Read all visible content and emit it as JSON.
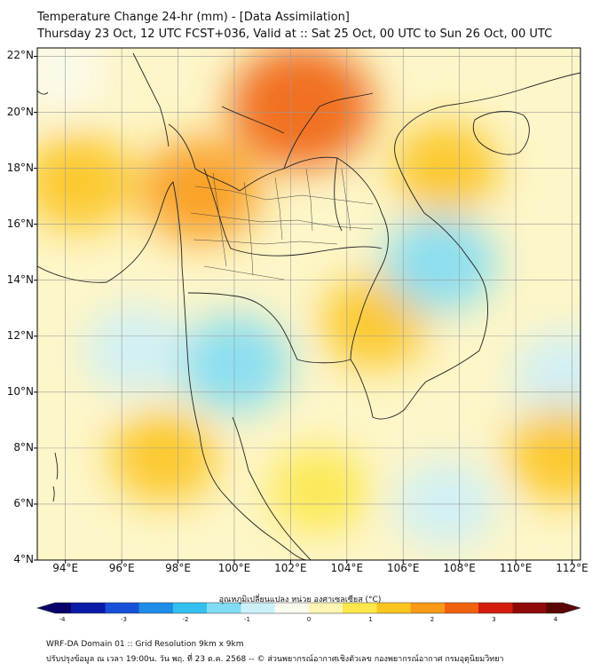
{
  "header": {
    "title_line1": "Temperature Change 24-hr (mm) - [Data Assimilation]",
    "title_line2": "Thursday 23 Oct, 12 UTC FCST+036, Valid at :: Sat 25 Oct, 00 UTC to Sun 26 Oct, 00 UTC"
  },
  "map": {
    "lat_labels": [
      "22°N",
      "20°N",
      "18°N",
      "16°N",
      "14°N",
      "12°N",
      "10°N",
      "8°N",
      "6°N",
      "4°N"
    ],
    "lon_labels": [
      "94°E",
      "96°E",
      "98°E",
      "100°E",
      "102°E",
      "104°E",
      "106°E",
      "108°E",
      "110°E",
      "112°E"
    ],
    "lat_range": [
      4,
      22.3
    ],
    "lon_range": [
      93,
      112.3
    ],
    "grid_color": "#9a9a9a",
    "coast_color": "#222222"
  },
  "colorbar": {
    "title": "อุณหภูมิเปลี่ยนแปลง หน่วย องศาเซลเซียส (°C)",
    "range": [
      -4,
      4
    ],
    "ticks": [
      "-4",
      "-3",
      "-2",
      "-1",
      "0",
      "1",
      "2",
      "3",
      "4"
    ],
    "colors": [
      "#08006a",
      "#0a1aa6",
      "#1650d8",
      "#1f8ce8",
      "#33c0f0",
      "#7fdcf4",
      "#ccf0fa",
      "#fbfbf0",
      "#fdf6b4",
      "#fce84a",
      "#fcc41e",
      "#f99a16",
      "#f0620e",
      "#d41c0c",
      "#8e0a0a",
      "#5a0606"
    ]
  },
  "footer": {
    "line1": "WRF-DA Domain 01 :: Grid Resolution 9km x 9km",
    "line2": "ปรับปรุงข้อมูล ณ เวลา 19:00น. วัน พฤ. ที่ 23 ต.ค. 2568 -- © ส่วนพยากรณ์อากาศเชิงตัวเลข กองพยากรณ์อากาศ กรมอุตุนิยมวิทยา"
  },
  "chart_data": {
    "type": "heatmap",
    "variable": "24-hr temperature change",
    "unit": "°C",
    "value_range": [
      -4,
      4
    ],
    "features": [
      {
        "name": "warm core north Laos",
        "lon": 102.4,
        "lat": 20.2,
        "value": 2.3
      },
      {
        "name": "warm band north Thailand",
        "lon": 98.8,
        "lat": 17.2,
        "value": 1.5
      },
      {
        "name": "warm northwest",
        "lon": 94.5,
        "lat": 17.5,
        "value": 1.2
      },
      {
        "name": "warm south Vietnam",
        "lon": 105.0,
        "lat": 12.5,
        "value": 1.0
      },
      {
        "name": "warm northeast Vietnam",
        "lon": 107.5,
        "lat": 18.0,
        "value": 1.0
      },
      {
        "name": "cool east central Vietnam",
        "lon": 107.3,
        "lat": 14.6,
        "value": -1.2
      },
      {
        "name": "cool gulf of Thailand",
        "lon": 100.0,
        "lat": 11.0,
        "value": -1.2
      },
      {
        "name": "cool andaman sea",
        "lon": 96.5,
        "lat": 11.5,
        "value": -0.8
      },
      {
        "name": "cool east sea",
        "lon": 111.8,
        "lat": 10.5,
        "value": -1.0
      },
      {
        "name": "cool south",
        "lon": 107.5,
        "lat": 6.0,
        "value": -0.8
      },
      {
        "name": "warm andaman",
        "lon": 97.5,
        "lat": 7.7,
        "value": 1.0
      },
      {
        "name": "warm southeast",
        "lon": 111.7,
        "lat": 7.8,
        "value": 1.2
      },
      {
        "name": "warm mid south",
        "lon": 103.0,
        "lat": 6.5,
        "value": 0.8
      },
      {
        "name": "cool northwest",
        "lon": 93.8,
        "lat": 21.5,
        "value": -0.5
      }
    ]
  }
}
